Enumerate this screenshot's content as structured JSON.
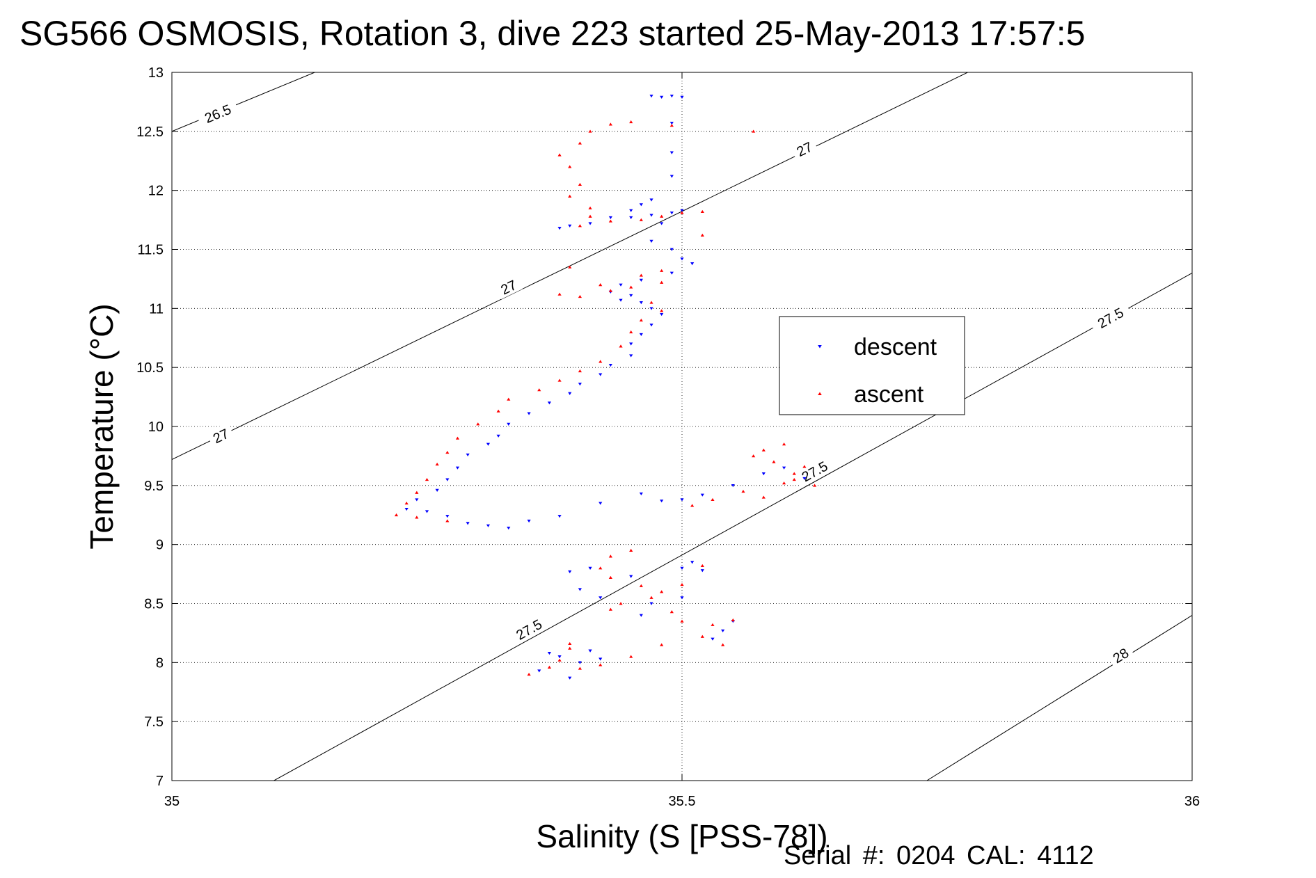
{
  "title": "SG566 OSMOSIS, Rotation 3, dive 223 started 25-May-2013 17:57:5",
  "footer": "Serial #: 0204  CAL: 4112",
  "chart_data": {
    "type": "scatter",
    "title": "SG566 OSMOSIS, Rotation 3, dive 223 started 25-May-2013 17:57:5",
    "xlabel": "Salinity (S [PSS-78])",
    "ylabel": "Temperature (°C)",
    "xlim": [
      35,
      36
    ],
    "ylim": [
      7,
      13
    ],
    "xticks": [
      35,
      35.5,
      36
    ],
    "xtick_labels": [
      "35",
      "35.5",
      "36"
    ],
    "yticks": [
      7,
      7.5,
      8,
      8.5,
      9,
      9.5,
      10,
      10.5,
      11,
      11.5,
      12,
      12.5,
      13
    ],
    "ytick_labels": [
      "7",
      "7.5",
      "8",
      "8.5",
      "9",
      "9.5",
      "10",
      "10.5",
      "11",
      "11.5",
      "12",
      "12.5",
      "13"
    ],
    "grid": "dotted",
    "legend_position": "right",
    "contours": [
      {
        "label": "26.5",
        "points": [
          [
            35.0,
            12.5
          ],
          [
            35.14,
            13.0
          ]
        ],
        "label_at": [
          [
            35.045,
            12.65
          ]
        ]
      },
      {
        "label": "27",
        "points": [
          [
            35.0,
            9.72
          ],
          [
            35.78,
            13.0
          ]
        ],
        "label_at": [
          [
            35.048,
            9.92
          ],
          [
            35.33,
            11.18
          ],
          [
            35.62,
            12.35
          ]
        ]
      },
      {
        "label": "27.5",
        "points": [
          [
            35.1,
            7.0
          ],
          [
            36.0,
            11.3
          ]
        ],
        "label_at": [
          [
            35.35,
            8.28
          ],
          [
            35.63,
            9.62
          ],
          [
            35.92,
            10.92
          ]
        ]
      },
      {
        "label": "28",
        "points": [
          [
            35.74,
            7.0
          ],
          [
            36.0,
            8.4
          ]
        ],
        "label_at": [
          [
            35.93,
            8.06
          ]
        ]
      }
    ],
    "series": [
      {
        "name": "descent",
        "color": "#0000ff",
        "marker": "triangle-down",
        "points": [
          [
            35.47,
            12.8
          ],
          [
            35.48,
            12.79
          ],
          [
            35.49,
            12.8
          ],
          [
            35.5,
            12.79
          ],
          [
            35.49,
            12.57
          ],
          [
            35.49,
            12.32
          ],
          [
            35.49,
            12.12
          ],
          [
            35.47,
            11.92
          ],
          [
            35.46,
            11.88
          ],
          [
            35.45,
            11.83
          ],
          [
            35.43,
            11.77
          ],
          [
            35.41,
            11.72
          ],
          [
            35.39,
            11.7
          ],
          [
            35.38,
            11.68
          ],
          [
            35.45,
            11.77
          ],
          [
            35.47,
            11.79
          ],
          [
            35.49,
            11.81
          ],
          [
            35.48,
            11.72
          ],
          [
            35.5,
            11.83
          ],
          [
            35.47,
            11.57
          ],
          [
            35.49,
            11.5
          ],
          [
            35.5,
            11.42
          ],
          [
            35.51,
            11.38
          ],
          [
            35.49,
            11.3
          ],
          [
            35.46,
            11.24
          ],
          [
            35.44,
            11.2
          ],
          [
            35.43,
            11.14
          ],
          [
            35.45,
            11.11
          ],
          [
            35.44,
            11.07
          ],
          [
            35.46,
            11.05
          ],
          [
            35.47,
            11.0
          ],
          [
            35.48,
            10.95
          ],
          [
            35.47,
            10.86
          ],
          [
            35.46,
            10.78
          ],
          [
            35.45,
            10.7
          ],
          [
            35.45,
            10.6
          ],
          [
            35.43,
            10.52
          ],
          [
            35.42,
            10.44
          ],
          [
            35.4,
            10.36
          ],
          [
            35.39,
            10.28
          ],
          [
            35.37,
            10.2
          ],
          [
            35.35,
            10.11
          ],
          [
            35.33,
            10.02
          ],
          [
            35.32,
            9.92
          ],
          [
            35.31,
            9.85
          ],
          [
            35.29,
            9.76
          ],
          [
            35.28,
            9.65
          ],
          [
            35.27,
            9.55
          ],
          [
            35.26,
            9.46
          ],
          [
            35.24,
            9.38
          ],
          [
            35.23,
            9.3
          ],
          [
            35.25,
            9.28
          ],
          [
            35.27,
            9.24
          ],
          [
            35.29,
            9.18
          ],
          [
            35.31,
            9.16
          ],
          [
            35.33,
            9.14
          ],
          [
            35.35,
            9.2
          ],
          [
            35.38,
            9.24
          ],
          [
            35.42,
            9.35
          ],
          [
            35.46,
            9.43
          ],
          [
            35.48,
            9.37
          ],
          [
            35.5,
            9.38
          ],
          [
            35.52,
            9.42
          ],
          [
            35.55,
            9.5
          ],
          [
            35.58,
            9.6
          ],
          [
            35.6,
            9.65
          ],
          [
            35.62,
            9.56
          ],
          [
            35.51,
            8.85
          ],
          [
            35.5,
            8.8
          ],
          [
            35.52,
            8.78
          ],
          [
            35.45,
            8.73
          ],
          [
            35.41,
            8.8
          ],
          [
            35.39,
            8.77
          ],
          [
            35.4,
            8.62
          ],
          [
            35.42,
            8.55
          ],
          [
            35.47,
            8.5
          ],
          [
            35.5,
            8.55
          ],
          [
            35.46,
            8.4
          ],
          [
            35.55,
            8.35
          ],
          [
            35.54,
            8.27
          ],
          [
            35.53,
            8.2
          ],
          [
            35.41,
            8.1
          ],
          [
            35.38,
            8.05
          ],
          [
            35.4,
            8.0
          ],
          [
            35.36,
            7.93
          ],
          [
            35.39,
            7.87
          ],
          [
            35.42,
            8.03
          ],
          [
            35.37,
            8.08
          ]
        ]
      },
      {
        "name": "ascent",
        "color": "#ff0000",
        "marker": "triangle-up",
        "points": [
          [
            35.49,
            12.55
          ],
          [
            35.45,
            12.58
          ],
          [
            35.43,
            12.56
          ],
          [
            35.41,
            12.5
          ],
          [
            35.4,
            12.4
          ],
          [
            35.38,
            12.3
          ],
          [
            35.39,
            12.2
          ],
          [
            35.4,
            12.05
          ],
          [
            35.39,
            11.95
          ],
          [
            35.41,
            11.85
          ],
          [
            35.41,
            11.78
          ],
          [
            35.4,
            11.7
          ],
          [
            35.43,
            11.74
          ],
          [
            35.46,
            11.75
          ],
          [
            35.5,
            11.81
          ],
          [
            35.52,
            11.82
          ],
          [
            35.48,
            11.78
          ],
          [
            35.52,
            11.62
          ],
          [
            35.48,
            11.32
          ],
          [
            35.46,
            11.28
          ],
          [
            35.48,
            11.22
          ],
          [
            35.45,
            11.18
          ],
          [
            35.43,
            11.15
          ],
          [
            35.4,
            11.1
          ],
          [
            35.38,
            11.12
          ],
          [
            35.42,
            11.2
          ],
          [
            35.39,
            11.35
          ],
          [
            35.47,
            11.05
          ],
          [
            35.48,
            10.98
          ],
          [
            35.46,
            10.9
          ],
          [
            35.45,
            10.8
          ],
          [
            35.44,
            10.68
          ],
          [
            35.42,
            10.55
          ],
          [
            35.4,
            10.47
          ],
          [
            35.38,
            10.39
          ],
          [
            35.36,
            10.31
          ],
          [
            35.33,
            10.23
          ],
          [
            35.32,
            10.13
          ],
          [
            35.3,
            10.02
          ],
          [
            35.28,
            9.9
          ],
          [
            35.27,
            9.78
          ],
          [
            35.26,
            9.68
          ],
          [
            35.25,
            9.55
          ],
          [
            35.24,
            9.44
          ],
          [
            35.23,
            9.35
          ],
          [
            35.22,
            9.25
          ],
          [
            35.24,
            9.23
          ],
          [
            35.27,
            9.2
          ],
          [
            35.58,
            9.8
          ],
          [
            35.6,
            9.85
          ],
          [
            35.57,
            9.75
          ],
          [
            35.59,
            9.7
          ],
          [
            35.61,
            9.6
          ],
          [
            35.62,
            9.66
          ],
          [
            35.61,
            9.55
          ],
          [
            35.63,
            9.5
          ],
          [
            35.6,
            9.52
          ],
          [
            35.58,
            9.4
          ],
          [
            35.56,
            9.45
          ],
          [
            35.53,
            9.38
          ],
          [
            35.51,
            9.33
          ],
          [
            35.45,
            8.95
          ],
          [
            35.43,
            8.9
          ],
          [
            35.42,
            8.8
          ],
          [
            35.43,
            8.72
          ],
          [
            35.46,
            8.65
          ],
          [
            35.48,
            8.6
          ],
          [
            35.5,
            8.66
          ],
          [
            35.52,
            8.82
          ],
          [
            35.47,
            8.55
          ],
          [
            35.44,
            8.5
          ],
          [
            35.43,
            8.45
          ],
          [
            35.49,
            8.43
          ],
          [
            35.5,
            8.35
          ],
          [
            35.55,
            8.36
          ],
          [
            35.53,
            8.32
          ],
          [
            35.54,
            8.15
          ],
          [
            35.52,
            8.22
          ],
          [
            35.48,
            8.15
          ],
          [
            35.45,
            8.05
          ],
          [
            35.42,
            7.98
          ],
          [
            35.39,
            8.12
          ],
          [
            35.4,
            7.95
          ],
          [
            35.38,
            8.02
          ],
          [
            35.35,
            7.9
          ],
          [
            35.37,
            7.96
          ],
          [
            35.39,
            8.16
          ],
          [
            35.57,
            12.5
          ]
        ]
      }
    ]
  }
}
